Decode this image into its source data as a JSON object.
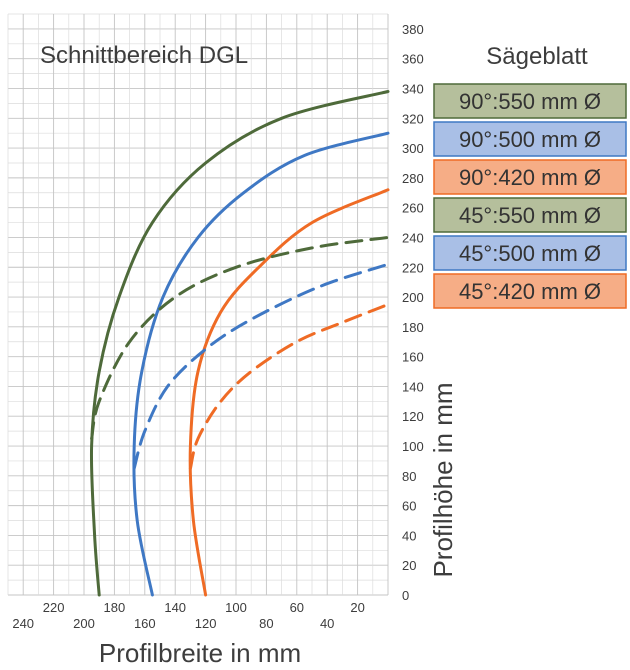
{
  "chart_data": {
    "type": "line",
    "title": "Schnittbereich DGL",
    "legend_title": "Sägeblatt",
    "xlabel": "Profilbreite in mm",
    "ylabel": "Profilhöhe in mm",
    "x_axis_direction": "reversed",
    "xlim": [
      0,
      250
    ],
    "ylim": [
      0,
      390
    ],
    "x_ticks_upper": [
      "220",
      "180",
      "140",
      "100",
      "60",
      "20"
    ],
    "x_ticks_upper_values": [
      220,
      180,
      140,
      100,
      60,
      20
    ],
    "x_ticks_lower": [
      "240",
      "200",
      "160",
      "120",
      "80",
      "40"
    ],
    "x_ticks_lower_values": [
      240,
      200,
      160,
      120,
      80,
      40
    ],
    "y_ticks": [
      "0",
      "20",
      "40",
      "60",
      "80",
      "100",
      "120",
      "140",
      "160",
      "180",
      "200",
      "220",
      "240",
      "260",
      "280",
      "300",
      "320",
      "340",
      "360",
      "380"
    ],
    "grid": true,
    "legend_position": "right",
    "series": [
      {
        "name": "90°:550 mm Ø",
        "color": "#4e6a3a",
        "legend_fill": "#b5bf9c",
        "dashed": false,
        "points": [
          [
            190,
            0
          ],
          [
            193,
            40
          ],
          [
            195,
            100
          ],
          [
            190,
            150
          ],
          [
            177,
            200
          ],
          [
            155,
            250
          ],
          [
            120,
            290
          ],
          [
            70,
            320
          ],
          [
            0,
            338
          ]
        ]
      },
      {
        "name": "90°:500 mm Ø",
        "color": "#3f78c4",
        "legend_fill": "#a9bfe6",
        "dashed": false,
        "points": [
          [
            155,
            0
          ],
          [
            165,
            50
          ],
          [
            167,
            100
          ],
          [
            162,
            150
          ],
          [
            148,
            200
          ],
          [
            125,
            240
          ],
          [
            95,
            270
          ],
          [
            55,
            295
          ],
          [
            0,
            310
          ]
        ]
      },
      {
        "name": "90°:420 mm Ø",
        "color": "#ef6b25",
        "legend_fill": "#f6ad86",
        "dashed": false,
        "points": [
          [
            120,
            0
          ],
          [
            128,
            50
          ],
          [
            130,
            100
          ],
          [
            125,
            150
          ],
          [
            110,
            190
          ],
          [
            85,
            220
          ],
          [
            50,
            250
          ],
          [
            0,
            272
          ]
        ]
      },
      {
        "name": "45°:550 mm Ø",
        "color": "#4e6a3a",
        "legend_fill": "#b5bf9c",
        "dashed": true,
        "points": [
          [
            195,
            105
          ],
          [
            190,
            130
          ],
          [
            170,
            170
          ],
          [
            140,
            200
          ],
          [
            100,
            220
          ],
          [
            50,
            233
          ],
          [
            0,
            240
          ]
        ]
      },
      {
        "name": "45°:500 mm Ø",
        "color": "#3f78c4",
        "legend_fill": "#a9bfe6",
        "dashed": true,
        "points": [
          [
            167,
            85
          ],
          [
            160,
            110
          ],
          [
            145,
            140
          ],
          [
            120,
            165
          ],
          [
            90,
            185
          ],
          [
            45,
            207
          ],
          [
            0,
            222
          ]
        ]
      },
      {
        "name": "45°:420 mm Ø",
        "color": "#ef6b25",
        "legend_fill": "#f6ad86",
        "dashed": true,
        "points": [
          [
            130,
            85
          ],
          [
            125,
            105
          ],
          [
            110,
            130
          ],
          [
            90,
            150
          ],
          [
            60,
            170
          ],
          [
            30,
            183
          ],
          [
            0,
            195
          ]
        ]
      }
    ]
  }
}
